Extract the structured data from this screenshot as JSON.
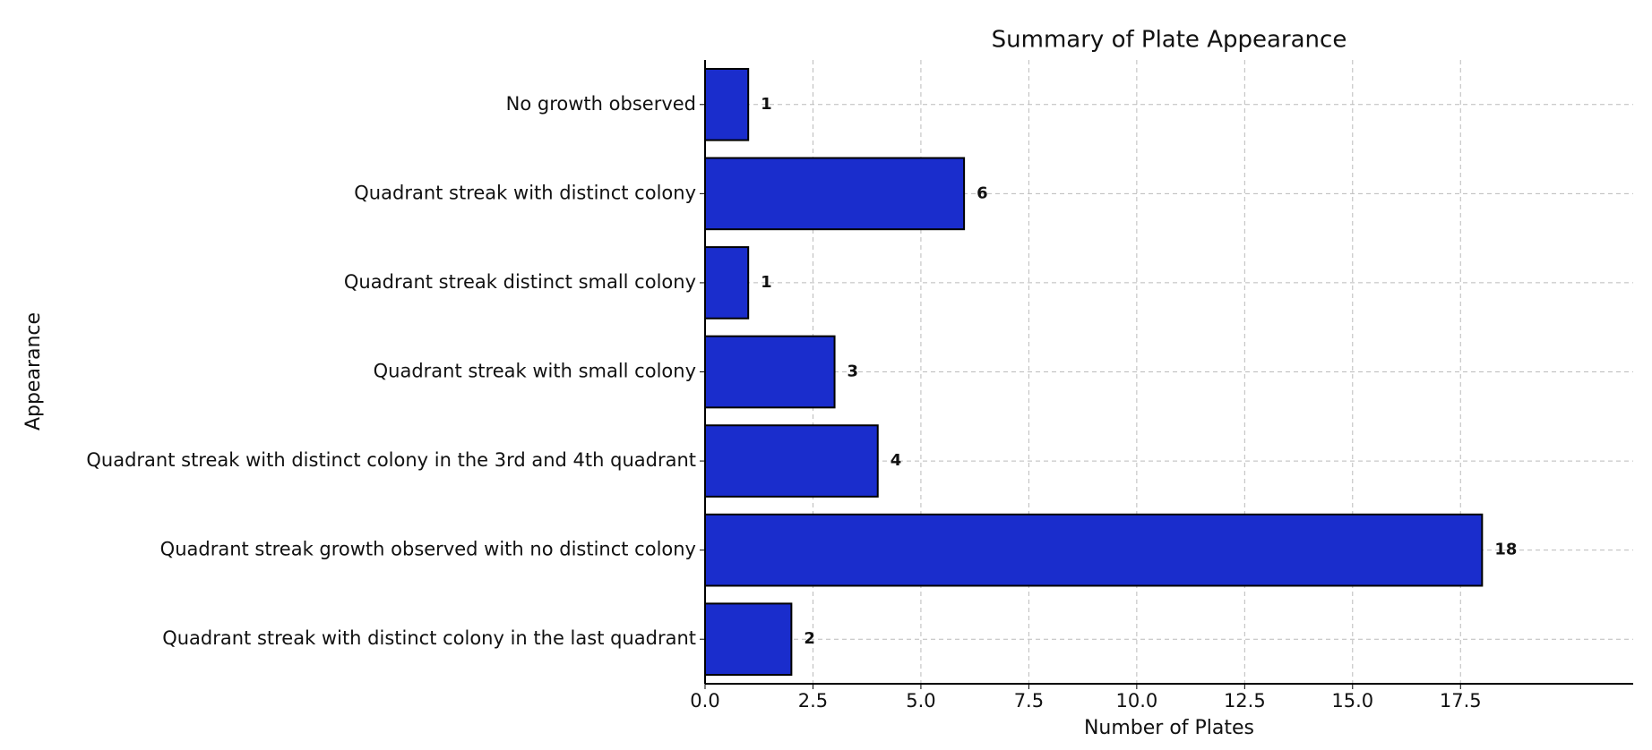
{
  "chart_data": {
    "type": "barh",
    "title": "Summary of Plate Appearance",
    "x_label": "Number of Plates",
    "y_label": "Appearance",
    "categories": [
      "No growth observed",
      "Quadrant streak with distinct colony",
      "Quadrant streak distinct small colony",
      "Quadrant streak with small colony",
      "Quadrant streak with distinct colony in the 3rd and 4th quadrant",
      "Quadrant streak growth observed with no distinct colony",
      "Quadrant streak with distinct colony in the last quadrant"
    ],
    "values": [
      1,
      6,
      1,
      3,
      4,
      18,
      2
    ],
    "color": "#1a2dcc",
    "xlim": [
      0,
      21.5
    ],
    "xticks": [
      {
        "value": 0,
        "label": "0.0"
      },
      2.5,
      {
        "value": 5,
        "label": "5.0"
      },
      7.5,
      {
        "value": 10,
        "label": "10.0"
      },
      12.5,
      {
        "value": 15,
        "label": "15.0"
      },
      17.5
    ],
    "grid": true
  }
}
